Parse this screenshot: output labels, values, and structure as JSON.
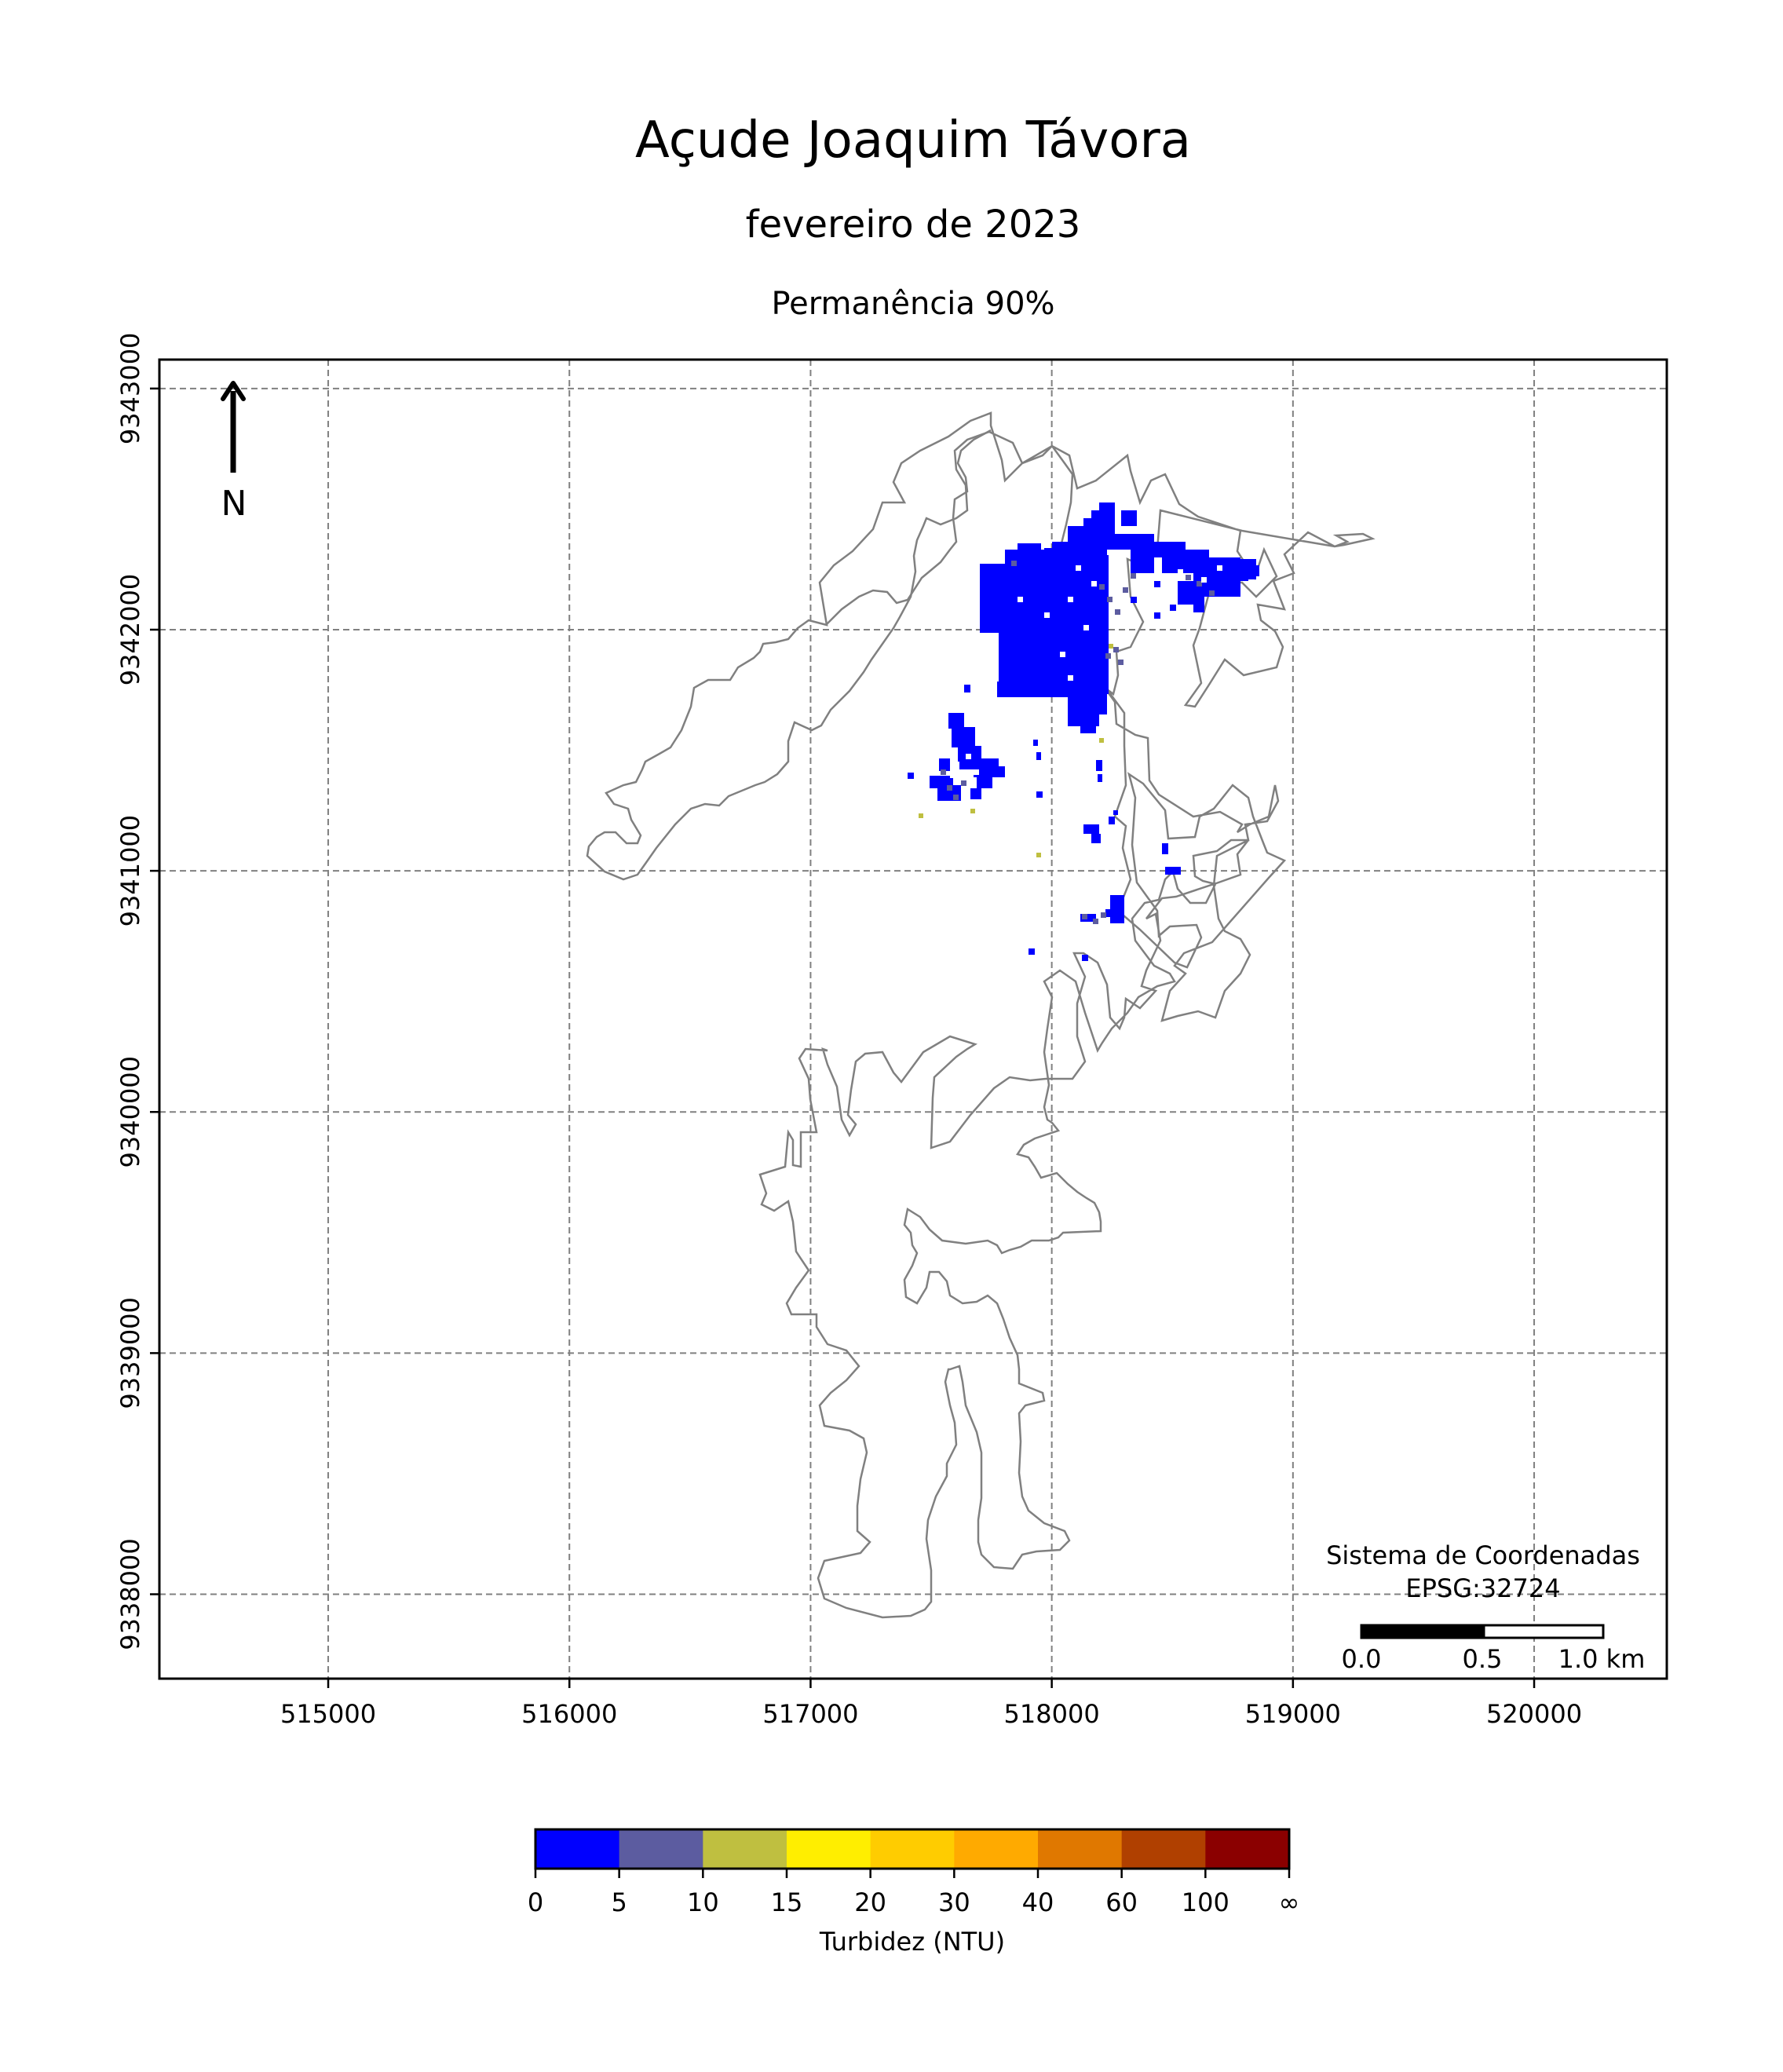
{
  "title": "Açude Joaquim Távora",
  "subtitle": "fevereiro de 2023",
  "caption": "Permanência 90%",
  "north_label": "N",
  "crs": {
    "line1": "Sistema de Coordenadas",
    "line2": "EPSG:32724"
  },
  "scalebar": {
    "labels": [
      "0.0",
      "0.5",
      "1.0 km"
    ]
  },
  "colorbar": {
    "label": "Turbidez (NTU)",
    "ticks": [
      "0",
      "5",
      "10",
      "15",
      "20",
      "30",
      "40",
      "60",
      "100",
      "∞"
    ],
    "colors": [
      "#0000ff",
      "#5c5ca0",
      "#bfbf40",
      "#ffee00",
      "#ffcc00",
      "#ffaa00",
      "#e07800",
      "#b04000",
      "#8b0000"
    ]
  },
  "chart_data": {
    "type": "map",
    "xlim": [
      514300,
      520550
    ],
    "ylim": [
      9337650,
      9343120
    ],
    "x_ticks": [
      515000,
      516000,
      517000,
      518000,
      519000,
      520000
    ],
    "y_ticks": [
      9338000,
      9339000,
      9340000,
      9341000,
      9342000,
      9343000
    ],
    "x_tick_labels": [
      "515000",
      "516000",
      "517000",
      "518000",
      "519000",
      "520000"
    ],
    "y_tick_labels": [
      "9338000",
      "9339000",
      "9340000",
      "9341000",
      "9342000",
      "9343000"
    ],
    "grid": true,
    "outline_color": "#808080",
    "dominant_class": "0-5 NTU"
  }
}
